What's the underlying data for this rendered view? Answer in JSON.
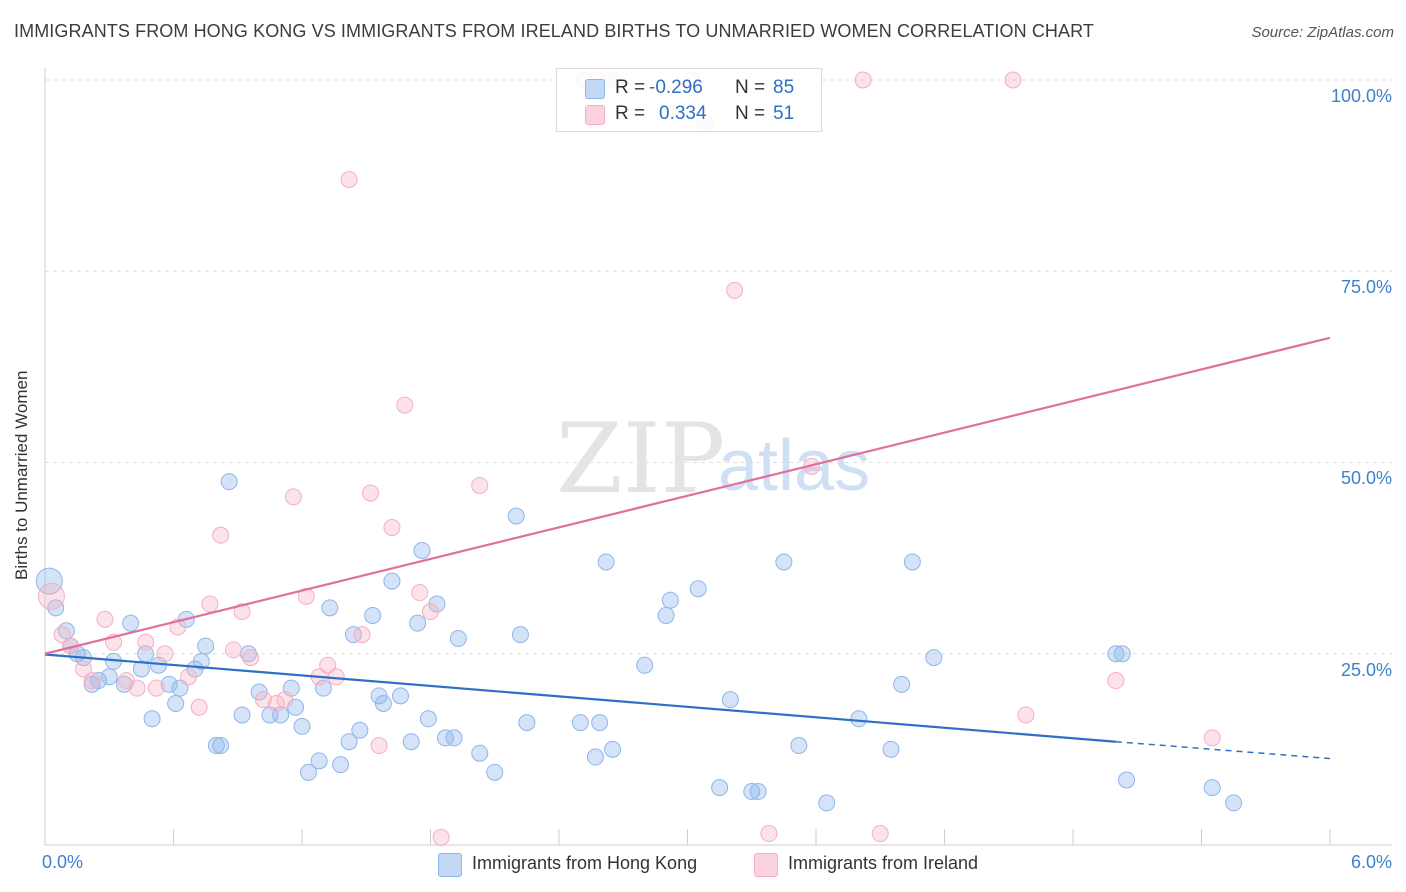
{
  "title": "IMMIGRANTS FROM HONG KONG VS IMMIGRANTS FROM IRELAND BIRTHS TO UNMARRIED WOMEN CORRELATION CHART",
  "source": "Source: ZipAtlas.com",
  "watermark": {
    "zip": "ZIP",
    "atlas": "atlas"
  },
  "legend_stats": {
    "r_label": "R =",
    "n_label": "N =",
    "hong_kong": {
      "r": "-0.296",
      "n": "85"
    },
    "ireland": {
      "r": "0.334",
      "n": "51"
    }
  },
  "chart_data": {
    "type": "scatter",
    "title": "IMMIGRANTS FROM HONG KONG VS IMMIGRANTS FROM IRELAND BIRTHS TO UNMARRIED WOMEN CORRELATION CHART",
    "xlabel": "",
    "ylabel": "Births to Unmarried Women",
    "xlim": [
      0,
      6
    ],
    "ylim": [
      0,
      100
    ],
    "x_tick_labels": [
      "0.0%",
      "6.0%"
    ],
    "y_ticks": [
      25,
      50,
      75,
      100
    ],
    "y_tick_labels": [
      "25.0%",
      "50.0%",
      "75.0%",
      "100.0%"
    ],
    "grid": true,
    "legend_position": "bottom",
    "series": [
      {
        "name": "Immigrants from Hong Kong",
        "color": "#8fb6ea",
        "line_color": "#2f6fc7",
        "trend": {
          "x0": 0,
          "y0": 24.9,
          "x1": 5.0,
          "y1": 13.5,
          "dash_to_x": 6.0,
          "dash_to_y": 11.3
        },
        "points": [
          [
            0.02,
            34.5
          ],
          [
            0.05,
            31.0
          ],
          [
            0.1,
            28.0
          ],
          [
            0.12,
            26.0
          ],
          [
            0.15,
            25.0
          ],
          [
            0.18,
            24.5
          ],
          [
            0.22,
            21.0
          ],
          [
            0.25,
            21.5
          ],
          [
            0.3,
            22.0
          ],
          [
            0.32,
            24.0
          ],
          [
            0.37,
            21.0
          ],
          [
            0.4,
            29.0
          ],
          [
            0.45,
            23.0
          ],
          [
            0.47,
            25.0
          ],
          [
            0.5,
            16.5
          ],
          [
            0.53,
            23.5
          ],
          [
            0.58,
            21.0
          ],
          [
            0.61,
            18.5
          ],
          [
            0.63,
            20.5
          ],
          [
            0.66,
            29.5
          ],
          [
            0.7,
            23.0
          ],
          [
            0.73,
            24.0
          ],
          [
            0.75,
            26.0
          ],
          [
            0.8,
            13.0
          ],
          [
            0.82,
            13.0
          ],
          [
            0.86,
            47.5
          ],
          [
            0.92,
            17.0
          ],
          [
            0.95,
            25.0
          ],
          [
            1.0,
            20.0
          ],
          [
            1.05,
            17.0
          ],
          [
            1.1,
            17.0
          ],
          [
            1.15,
            20.5
          ],
          [
            1.17,
            18.0
          ],
          [
            1.2,
            15.5
          ],
          [
            1.23,
            9.5
          ],
          [
            1.28,
            11.0
          ],
          [
            1.3,
            20.5
          ],
          [
            1.33,
            31.0
          ],
          [
            1.38,
            10.5
          ],
          [
            1.42,
            13.5
          ],
          [
            1.44,
            27.5
          ],
          [
            1.47,
            15.0
          ],
          [
            1.53,
            30.0
          ],
          [
            1.56,
            19.5
          ],
          [
            1.58,
            18.5
          ],
          [
            1.62,
            34.5
          ],
          [
            1.66,
            19.5
          ],
          [
            1.71,
            13.5
          ],
          [
            1.74,
            29.0
          ],
          [
            1.76,
            38.5
          ],
          [
            1.79,
            16.5
          ],
          [
            1.83,
            31.5
          ],
          [
            1.87,
            14.0
          ],
          [
            1.91,
            14.0
          ],
          [
            1.93,
            27.0
          ],
          [
            2.03,
            12.0
          ],
          [
            2.1,
            9.5
          ],
          [
            2.2,
            43.0
          ],
          [
            2.22,
            27.5
          ],
          [
            2.25,
            16.0
          ],
          [
            2.5,
            16.0
          ],
          [
            2.57,
            11.5
          ],
          [
            2.59,
            16.0
          ],
          [
            2.62,
            37.0
          ],
          [
            2.65,
            12.5
          ],
          [
            2.8,
            23.5
          ],
          [
            2.9,
            30.0
          ],
          [
            2.92,
            32.0
          ],
          [
            3.05,
            33.5
          ],
          [
            3.15,
            7.5
          ],
          [
            3.2,
            19.0
          ],
          [
            3.3,
            7.0
          ],
          [
            3.33,
            7.0
          ],
          [
            3.45,
            37.0
          ],
          [
            3.52,
            13.0
          ],
          [
            3.65,
            5.5
          ],
          [
            3.8,
            16.5
          ],
          [
            3.95,
            12.5
          ],
          [
            4.0,
            21.0
          ],
          [
            4.05,
            37.0
          ],
          [
            4.15,
            24.5
          ],
          [
            5.0,
            25.0
          ],
          [
            5.03,
            25.0
          ],
          [
            5.05,
            8.5
          ],
          [
            5.45,
            7.5
          ],
          [
            5.55,
            5.5
          ]
        ]
      },
      {
        "name": "Immigrants from Ireland",
        "color": "#f5aec4",
        "line_color": "#e0709a",
        "trend": {
          "x0": 0,
          "y0": 25.0,
          "x1": 6.0,
          "y1": 66.3
        },
        "points": [
          [
            0.03,
            32.5
          ],
          [
            0.08,
            27.5
          ],
          [
            0.12,
            26.0
          ],
          [
            0.18,
            23.0
          ],
          [
            0.22,
            21.5
          ],
          [
            0.28,
            29.5
          ],
          [
            0.32,
            26.5
          ],
          [
            0.38,
            21.5
          ],
          [
            0.43,
            20.5
          ],
          [
            0.47,
            26.5
          ],
          [
            0.52,
            20.5
          ],
          [
            0.56,
            25.0
          ],
          [
            0.62,
            28.5
          ],
          [
            0.67,
            22.0
          ],
          [
            0.72,
            18.0
          ],
          [
            0.77,
            31.5
          ],
          [
            0.82,
            40.5
          ],
          [
            0.88,
            25.5
          ],
          [
            0.92,
            30.5
          ],
          [
            0.96,
            24.5
          ],
          [
            1.02,
            19.0
          ],
          [
            1.08,
            18.5
          ],
          [
            1.12,
            19.0
          ],
          [
            1.16,
            45.5
          ],
          [
            1.22,
            32.5
          ],
          [
            1.28,
            22.0
          ],
          [
            1.32,
            23.5
          ],
          [
            1.36,
            22.0
          ],
          [
            1.42,
            87.0
          ],
          [
            1.48,
            27.5
          ],
          [
            1.52,
            46.0
          ],
          [
            1.56,
            13.0
          ],
          [
            1.62,
            41.5
          ],
          [
            1.68,
            57.5
          ],
          [
            1.75,
            33.0
          ],
          [
            1.8,
            30.5
          ],
          [
            1.85,
            1.0
          ],
          [
            2.03,
            47.0
          ],
          [
            2.52,
            100.0
          ],
          [
            2.58,
            100.0
          ],
          [
            2.65,
            100.0
          ],
          [
            3.02,
            100.0
          ],
          [
            3.08,
            94.5
          ],
          [
            3.22,
            72.5
          ],
          [
            3.38,
            1.5
          ],
          [
            3.58,
            49.5
          ],
          [
            3.82,
            100.0
          ],
          [
            3.9,
            1.5
          ],
          [
            4.52,
            100.0
          ],
          [
            4.58,
            17.0
          ],
          [
            5.0,
            21.5
          ],
          [
            5.45,
            14.0
          ]
        ]
      }
    ]
  }
}
